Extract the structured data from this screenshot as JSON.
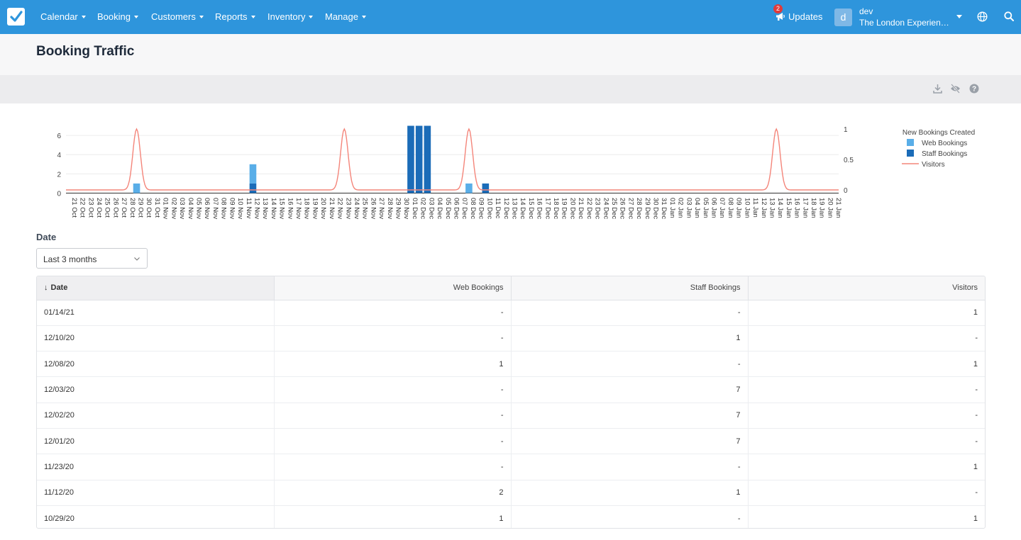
{
  "nav": {
    "items": [
      "Calendar",
      "Booking",
      "Customers",
      "Reports",
      "Inventory",
      "Manage"
    ],
    "updates_label": "Updates",
    "updates_badge": "2",
    "avatar_letter": "d",
    "user_name": "dev",
    "user_org": "The London Experience Tours"
  },
  "page": {
    "title": "Booking Traffic"
  },
  "filter": {
    "label": "Date",
    "selected": "Last 3 months"
  },
  "colors": {
    "nav_bg": "#2e95dc",
    "web_bookings": "#59aee8",
    "staff_bookings": "#1b6cb8",
    "visitors": "#f4857a"
  },
  "chart_data": {
    "type": "bar",
    "legend_title": "New Bookings Created",
    "legend_position": "top-right",
    "categories": [
      "21 Oct",
      "22 Oct",
      "23 Oct",
      "24 Oct",
      "25 Oct",
      "26 Oct",
      "27 Oct",
      "28 Oct",
      "29 Oct",
      "30 Oct",
      "31 Oct",
      "01 Nov",
      "02 Nov",
      "03 Nov",
      "04 Nov",
      "05 Nov",
      "06 Nov",
      "07 Nov",
      "08 Nov",
      "09 Nov",
      "10 Nov",
      "11 Nov",
      "12 Nov",
      "13 Nov",
      "14 Nov",
      "15 Nov",
      "16 Nov",
      "17 Nov",
      "18 Nov",
      "19 Nov",
      "20 Nov",
      "21 Nov",
      "22 Nov",
      "23 Nov",
      "24 Nov",
      "25 Nov",
      "26 Nov",
      "27 Nov",
      "28 Nov",
      "29 Nov",
      "30 Nov",
      "01 Dec",
      "02 Dec",
      "03 Dec",
      "04 Dec",
      "05 Dec",
      "06 Dec",
      "07 Dec",
      "08 Dec",
      "09 Dec",
      "10 Dec",
      "11 Dec",
      "12 Dec",
      "13 Dec",
      "14 Dec",
      "15 Dec",
      "16 Dec",
      "17 Dec",
      "18 Dec",
      "19 Dec",
      "20 Dec",
      "21 Dec",
      "22 Dec",
      "23 Dec",
      "24 Dec",
      "25 Dec",
      "26 Dec",
      "27 Dec",
      "28 Dec",
      "29 Dec",
      "30 Dec",
      "31 Dec",
      "01 Jan",
      "02 Jan",
      "03 Jan",
      "04 Jan",
      "05 Jan",
      "06 Jan",
      "07 Jan",
      "08 Jan",
      "09 Jan",
      "10 Jan",
      "11 Jan",
      "12 Jan",
      "13 Jan",
      "14 Jan",
      "15 Jan",
      "16 Jan",
      "17 Jan",
      "18 Jan",
      "19 Jan",
      "20 Jan",
      "21 Jan"
    ],
    "series": [
      {
        "name": "Web Bookings",
        "kind": "bar",
        "axis": "left",
        "values": {
          "29 Oct": 1,
          "12 Nov": 2,
          "08 Dec": 1
        }
      },
      {
        "name": "Staff Bookings",
        "kind": "bar",
        "axis": "left",
        "values": {
          "12 Nov": 1,
          "01 Dec": 7,
          "02 Dec": 7,
          "03 Dec": 7,
          "10 Dec": 1
        }
      },
      {
        "name": "Visitors",
        "kind": "line",
        "axis": "right",
        "values": {
          "29 Oct": 1,
          "12 Nov": 0,
          "23 Nov": 1,
          "08 Dec": 1,
          "14 Jan": 1
        }
      }
    ],
    "y_left": {
      "ticks": [
        "0",
        "2",
        "4",
        "6"
      ],
      "range": [
        0,
        7
      ]
    },
    "y_right": {
      "ticks": [
        "0",
        "0.5",
        "1"
      ],
      "range": [
        0,
        1
      ]
    }
  },
  "table": {
    "columns": [
      "Date",
      "Web Bookings",
      "Staff Bookings",
      "Visitors"
    ],
    "rows": [
      [
        "01/14/21",
        "-",
        "-",
        "1"
      ],
      [
        "12/10/20",
        "-",
        "1",
        "-"
      ],
      [
        "12/08/20",
        "1",
        "-",
        "1"
      ],
      [
        "12/03/20",
        "-",
        "7",
        "-"
      ],
      [
        "12/02/20",
        "-",
        "7",
        "-"
      ],
      [
        "12/01/20",
        "-",
        "7",
        "-"
      ],
      [
        "11/23/20",
        "-",
        "-",
        "1"
      ],
      [
        "11/12/20",
        "2",
        "1",
        "-"
      ],
      [
        "10/29/20",
        "1",
        "-",
        "1"
      ]
    ]
  }
}
